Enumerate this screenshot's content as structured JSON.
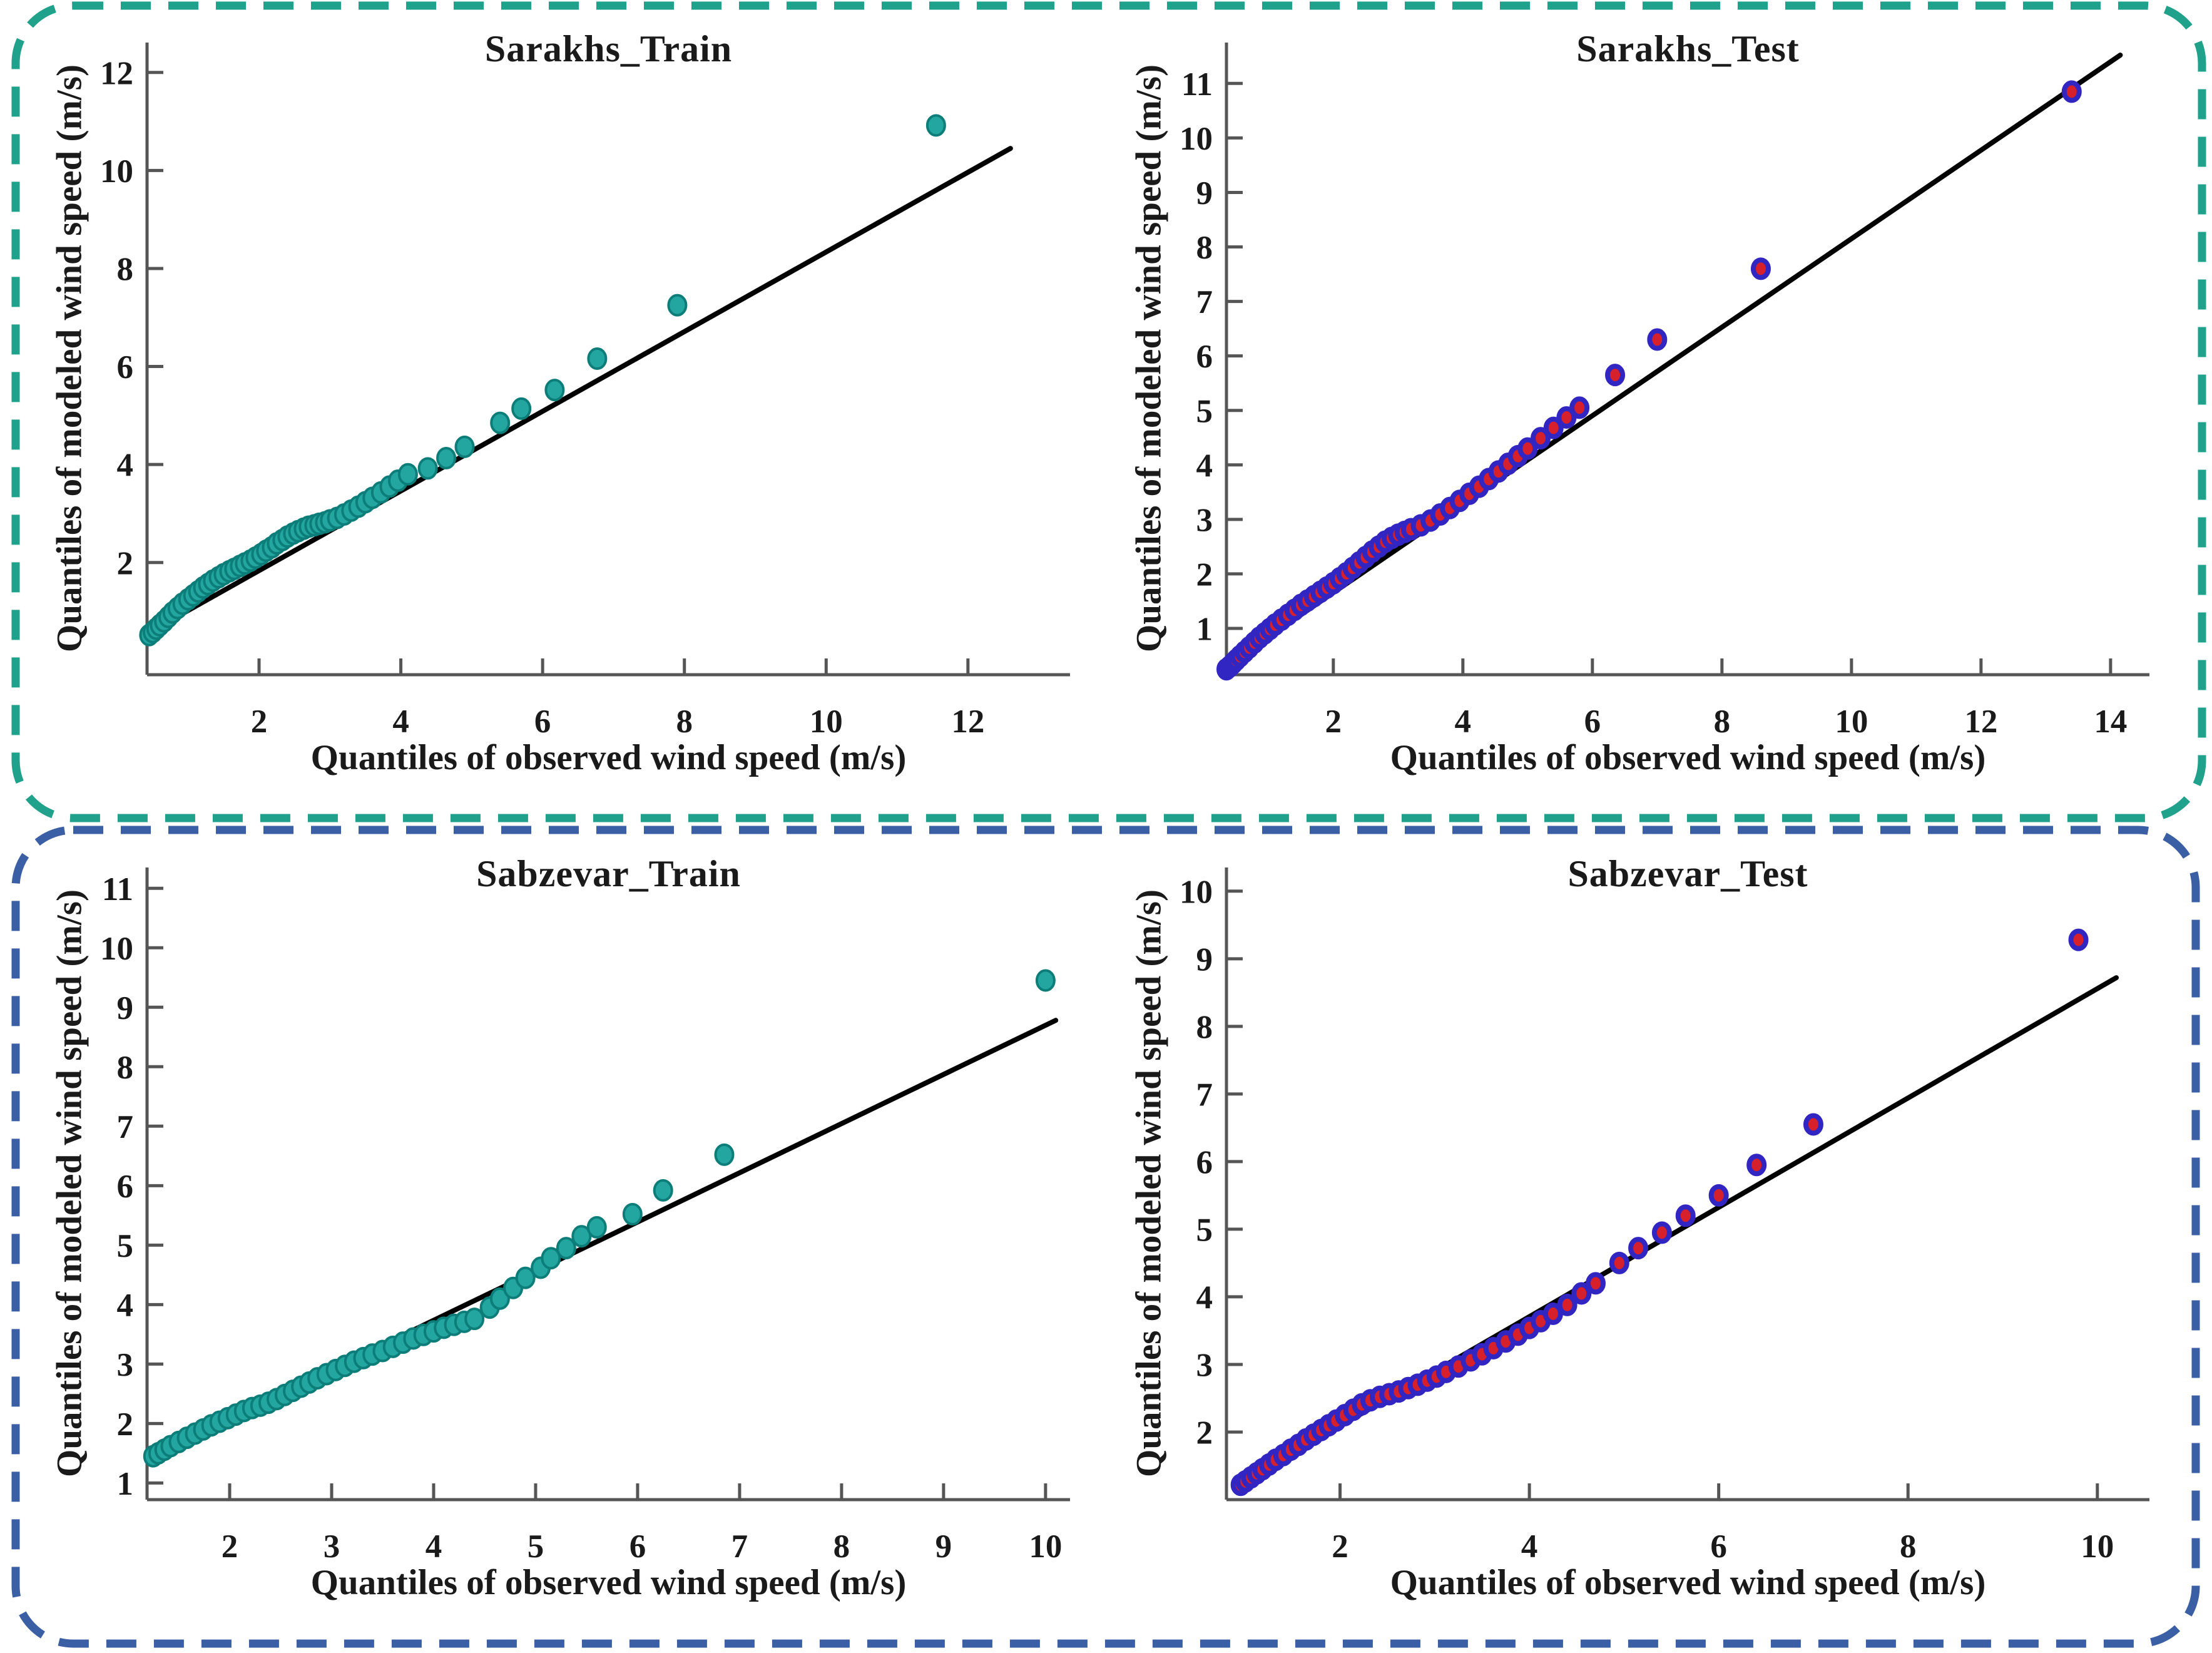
{
  "figure": {
    "description": "Q-Q plots of modeled vs observed wind speed for Sarakhs and Sabzevar stations (train and test sets)",
    "groups": [
      {
        "name": "sarakhs-row",
        "border_color": "#1fa18c"
      },
      {
        "name": "sabzevar-row",
        "border_color": "#3b5fa5"
      }
    ],
    "background": "#ffffff",
    "axis_color": "#555555",
    "reference_line_color": "#000000"
  },
  "chart_data": [
    {
      "type": "scatter",
      "title": "Sarakhs_Train",
      "xlabel": "Quantiles of observed wind speed (m/s)",
      "ylabel": "Quantiles of modeled wind speed (m/s)",
      "xlim": [
        0.42,
        13.44
      ],
      "ylim": [
        -0.29,
        12.61
      ],
      "x_ticks": [
        2,
        4,
        6,
        8,
        10,
        12
      ],
      "y_ticks": [
        2,
        4,
        6,
        8,
        10,
        12
      ],
      "grid": false,
      "legend": false,
      "marker": {
        "shape": "circle",
        "fill": "#23a5a0",
        "edge": "#0c7d78",
        "radius": 14,
        "edge_width": 4
      },
      "reference_line": {
        "from": [
          0.42,
          0.55
        ],
        "to": [
          12.6,
          10.45
        ],
        "color": "#000000"
      },
      "series": [
        {
          "name": "train-quantile-points",
          "points": [
            [
              0.45,
              0.52
            ],
            [
              0.5,
              0.58
            ],
            [
              0.55,
              0.65
            ],
            [
              0.6,
              0.72
            ],
            [
              0.66,
              0.8
            ],
            [
              0.72,
              0.89
            ],
            [
              0.78,
              0.98
            ],
            [
              0.85,
              1.07
            ],
            [
              0.92,
              1.16
            ],
            [
              1.0,
              1.25
            ],
            [
              1.07,
              1.33
            ],
            [
              1.14,
              1.41
            ],
            [
              1.21,
              1.49
            ],
            [
              1.28,
              1.56
            ],
            [
              1.35,
              1.63
            ],
            [
              1.43,
              1.7
            ],
            [
              1.5,
              1.76
            ],
            [
              1.58,
              1.82
            ],
            [
              1.65,
              1.87
            ],
            [
              1.73,
              1.93
            ],
            [
              1.8,
              1.98
            ],
            [
              1.88,
              2.04
            ],
            [
              1.95,
              2.1
            ],
            [
              2.03,
              2.17
            ],
            [
              2.1,
              2.24
            ],
            [
              2.18,
              2.31
            ],
            [
              2.25,
              2.39
            ],
            [
              2.33,
              2.46
            ],
            [
              2.4,
              2.53
            ],
            [
              2.48,
              2.59
            ],
            [
              2.55,
              2.64
            ],
            [
              2.63,
              2.69
            ],
            [
              2.7,
              2.73
            ],
            [
              2.78,
              2.76
            ],
            [
              2.85,
              2.79
            ],
            [
              2.93,
              2.82
            ],
            [
              3.0,
              2.86
            ],
            [
              3.1,
              2.91
            ],
            [
              3.2,
              2.98
            ],
            [
              3.3,
              3.06
            ],
            [
              3.4,
              3.14
            ],
            [
              3.5,
              3.23
            ],
            [
              3.6,
              3.32
            ],
            [
              3.72,
              3.43
            ],
            [
              3.84,
              3.55
            ],
            [
              3.96,
              3.67
            ],
            [
              4.1,
              3.8
            ],
            [
              4.38,
              3.92
            ],
            [
              4.64,
              4.13
            ],
            [
              4.9,
              4.36
            ],
            [
              5.4,
              4.85
            ],
            [
              5.7,
              5.14
            ],
            [
              6.17,
              5.52
            ],
            [
              6.77,
              6.16
            ],
            [
              7.9,
              7.25
            ],
            [
              11.55,
              10.92
            ]
          ]
        }
      ]
    },
    {
      "type": "scatter",
      "title": "Sarakhs_Test",
      "xlabel": "Quantiles of observed wind speed (m/s)",
      "ylabel": "Quantiles of modeled wind speed (m/s)",
      "xlim": [
        0.35,
        14.6
      ],
      "ylim": [
        0.15,
        11.75
      ],
      "x_ticks": [
        2,
        4,
        6,
        8,
        10,
        12,
        14
      ],
      "y_ticks": [
        1,
        2,
        3,
        4,
        5,
        6,
        7,
        8,
        9,
        10,
        11
      ],
      "grid": false,
      "legend": false,
      "marker": {
        "shape": "circle",
        "fill": "#d6202b",
        "edge": "#3226c3",
        "radius": 12,
        "edge_width": 8
      },
      "reference_line": {
        "from": [
          0.33,
          0.3
        ],
        "to": [
          14.15,
          11.52
        ],
        "color": "#000000"
      },
      "series": [
        {
          "name": "test-quantile-points",
          "points": [
            [
              0.35,
              0.25
            ],
            [
              0.4,
              0.3
            ],
            [
              0.45,
              0.36
            ],
            [
              0.5,
              0.42
            ],
            [
              0.56,
              0.49
            ],
            [
              0.63,
              0.57
            ],
            [
              0.7,
              0.65
            ],
            [
              0.78,
              0.74
            ],
            [
              0.86,
              0.83
            ],
            [
              0.94,
              0.91
            ],
            [
              1.02,
              0.99
            ],
            [
              1.1,
              1.07
            ],
            [
              1.2,
              1.16
            ],
            [
              1.3,
              1.25
            ],
            [
              1.4,
              1.34
            ],
            [
              1.5,
              1.43
            ],
            [
              1.6,
              1.51
            ],
            [
              1.7,
              1.59
            ],
            [
              1.8,
              1.67
            ],
            [
              1.9,
              1.75
            ],
            [
              2.0,
              1.83
            ],
            [
              2.1,
              1.92
            ],
            [
              2.2,
              2.01
            ],
            [
              2.3,
              2.11
            ],
            [
              2.4,
              2.21
            ],
            [
              2.5,
              2.31
            ],
            [
              2.6,
              2.41
            ],
            [
              2.7,
              2.5
            ],
            [
              2.8,
              2.59
            ],
            [
              2.9,
              2.66
            ],
            [
              3.0,
              2.72
            ],
            [
              3.1,
              2.77
            ],
            [
              3.2,
              2.82
            ],
            [
              3.35,
              2.89
            ],
            [
              3.5,
              2.98
            ],
            [
              3.65,
              3.09
            ],
            [
              3.8,
              3.21
            ],
            [
              3.95,
              3.34
            ],
            [
              4.1,
              3.47
            ],
            [
              4.25,
              3.6
            ],
            [
              4.4,
              3.74
            ],
            [
              4.55,
              3.88
            ],
            [
              4.7,
              4.02
            ],
            [
              4.85,
              4.16
            ],
            [
              5.0,
              4.3
            ],
            [
              5.2,
              4.49
            ],
            [
              5.4,
              4.68
            ],
            [
              5.6,
              4.87
            ],
            [
              5.8,
              5.05
            ],
            [
              6.35,
              5.65
            ],
            [
              7.0,
              6.3
            ],
            [
              8.6,
              7.6
            ],
            [
              13.4,
              10.85
            ]
          ]
        }
      ]
    },
    {
      "type": "scatter",
      "title": "Sabzevar_Train",
      "xlabel": "Quantiles of observed wind speed (m/s)",
      "ylabel": "Quantiles of modeled wind speed (m/s)",
      "xlim": [
        1.19,
        10.24
      ],
      "ylim": [
        0.72,
        11.35
      ],
      "x_ticks": [
        2,
        3,
        4,
        5,
        6,
        7,
        8,
        9,
        10
      ],
      "y_ticks": [
        1,
        2,
        3,
        4,
        5,
        6,
        7,
        8,
        9,
        10,
        11
      ],
      "grid": false,
      "legend": false,
      "marker": {
        "shape": "circle",
        "fill": "#23a5a0",
        "edge": "#0c7d78",
        "radius": 14,
        "edge_width": 4
      },
      "reference_line": {
        "from": [
          1.2,
          1.42
        ],
        "to": [
          10.1,
          8.78
        ],
        "color": "#000000"
      },
      "series": [
        {
          "name": "train-quantile-points",
          "points": [
            [
              1.25,
              1.45
            ],
            [
              1.3,
              1.5
            ],
            [
              1.36,
              1.56
            ],
            [
              1.42,
              1.62
            ],
            [
              1.5,
              1.69
            ],
            [
              1.58,
              1.76
            ],
            [
              1.66,
              1.83
            ],
            [
              1.74,
              1.9
            ],
            [
              1.82,
              1.97
            ],
            [
              1.9,
              2.03
            ],
            [
              1.98,
              2.09
            ],
            [
              2.06,
              2.15
            ],
            [
              2.14,
              2.21
            ],
            [
              2.22,
              2.26
            ],
            [
              2.3,
              2.3
            ],
            [
              2.38,
              2.35
            ],
            [
              2.46,
              2.41
            ],
            [
              2.54,
              2.48
            ],
            [
              2.62,
              2.55
            ],
            [
              2.7,
              2.62
            ],
            [
              2.78,
              2.69
            ],
            [
              2.86,
              2.76
            ],
            [
              2.95,
              2.83
            ],
            [
              3.04,
              2.9
            ],
            [
              3.13,
              2.97
            ],
            [
              3.22,
              3.04
            ],
            [
              3.31,
              3.1
            ],
            [
              3.4,
              3.16
            ],
            [
              3.5,
              3.22
            ],
            [
              3.6,
              3.29
            ],
            [
              3.7,
              3.36
            ],
            [
              3.8,
              3.43
            ],
            [
              3.9,
              3.49
            ],
            [
              4.0,
              3.55
            ],
            [
              4.1,
              3.61
            ],
            [
              4.2,
              3.66
            ],
            [
              4.3,
              3.71
            ],
            [
              4.4,
              3.76
            ],
            [
              4.55,
              3.95
            ],
            [
              4.65,
              4.1
            ],
            [
              4.78,
              4.28
            ],
            [
              4.9,
              4.45
            ],
            [
              5.05,
              4.62
            ],
            [
              5.15,
              4.78
            ],
            [
              5.3,
              4.95
            ],
            [
              5.45,
              5.15
            ],
            [
              5.6,
              5.3
            ],
            [
              5.95,
              5.52
            ],
            [
              6.25,
              5.92
            ],
            [
              6.85,
              6.52
            ],
            [
              10.0,
              9.45
            ]
          ]
        }
      ]
    },
    {
      "type": "scatter",
      "title": "Sabzevar_Test",
      "xlabel": "Quantiles of observed wind speed (m/s)",
      "ylabel": "Quantiles of modeled wind speed (m/s)",
      "xlim": [
        0.8,
        10.55
      ],
      "ylim": [
        1.0,
        10.35
      ],
      "x_ticks": [
        2,
        4,
        6,
        8,
        10
      ],
      "y_ticks": [
        2,
        3,
        4,
        5,
        6,
        7,
        8,
        9,
        10
      ],
      "grid": false,
      "legend": false,
      "marker": {
        "shape": "circle",
        "fill": "#d6202b",
        "edge": "#3226c3",
        "radius": 12,
        "edge_width": 8
      },
      "reference_line": {
        "from": [
          0.9,
          1.2
        ],
        "to": [
          10.2,
          8.72
        ],
        "color": "#000000"
      },
      "series": [
        {
          "name": "test-quantile-points",
          "points": [
            [
              0.95,
              1.22
            ],
            [
              1.0,
              1.27
            ],
            [
              1.06,
              1.33
            ],
            [
              1.12,
              1.39
            ],
            [
              1.18,
              1.45
            ],
            [
              1.25,
              1.52
            ],
            [
              1.32,
              1.59
            ],
            [
              1.4,
              1.66
            ],
            [
              1.48,
              1.74
            ],
            [
              1.56,
              1.81
            ],
            [
              1.64,
              1.89
            ],
            [
              1.72,
              1.96
            ],
            [
              1.8,
              2.03
            ],
            [
              1.88,
              2.1
            ],
            [
              1.96,
              2.17
            ],
            [
              2.05,
              2.25
            ],
            [
              2.14,
              2.33
            ],
            [
              2.23,
              2.41
            ],
            [
              2.32,
              2.47
            ],
            [
              2.42,
              2.52
            ],
            [
              2.52,
              2.56
            ],
            [
              2.62,
              2.6
            ],
            [
              2.72,
              2.65
            ],
            [
              2.82,
              2.7
            ],
            [
              2.92,
              2.76
            ],
            [
              3.02,
              2.82
            ],
            [
              3.12,
              2.89
            ],
            [
              3.25,
              2.97
            ],
            [
              3.38,
              3.06
            ],
            [
              3.5,
              3.15
            ],
            [
              3.62,
              3.24
            ],
            [
              3.75,
              3.34
            ],
            [
              3.88,
              3.44
            ],
            [
              4.0,
              3.54
            ],
            [
              4.12,
              3.64
            ],
            [
              4.25,
              3.75
            ],
            [
              4.4,
              3.88
            ],
            [
              4.55,
              4.05
            ],
            [
              4.7,
              4.2
            ],
            [
              4.95,
              4.5
            ],
            [
              5.15,
              4.72
            ],
            [
              5.4,
              4.95
            ],
            [
              5.65,
              5.2
            ],
            [
              6.0,
              5.5
            ],
            [
              6.4,
              5.95
            ],
            [
              7.0,
              6.55
            ],
            [
              9.8,
              9.28
            ]
          ]
        }
      ]
    }
  ]
}
